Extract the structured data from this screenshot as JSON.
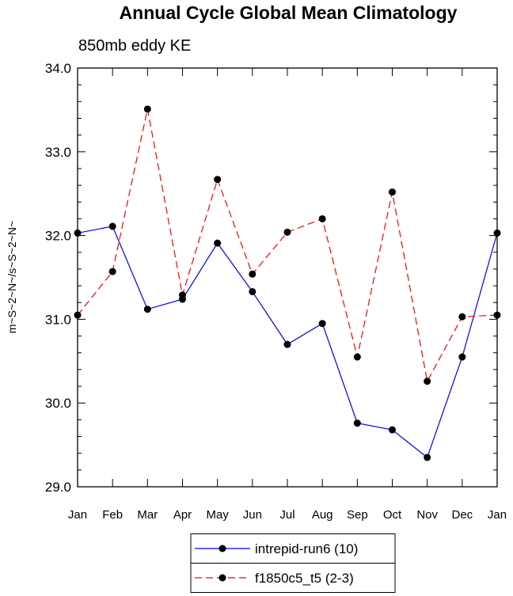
{
  "chart_data": {
    "type": "line",
    "title": "Annual Cycle Global Mean Climatology",
    "subtitle": "850mb eddy KE",
    "xlabel": "",
    "ylabel": "m~S~2~N~/s~S~2~N~",
    "categories": [
      "Jan",
      "Feb",
      "Mar",
      "Apr",
      "May",
      "Jun",
      "Jul",
      "Aug",
      "Sep",
      "Oct",
      "Nov",
      "Dec",
      "Jan"
    ],
    "ylim": [
      29.0,
      34.0
    ],
    "yticks": [
      "29.0",
      "30.0",
      "31.0",
      "32.0",
      "33.0",
      "34.0"
    ],
    "grid": false,
    "legend_placement": "bottom",
    "series": [
      {
        "name": "intrepid-run6 (10)",
        "color": "#0000ff",
        "dash": "solid",
        "values": [
          32.03,
          32.11,
          31.12,
          31.24,
          31.91,
          31.33,
          30.7,
          30.95,
          29.76,
          29.68,
          29.35,
          30.55,
          32.03
        ]
      },
      {
        "name": "f1850c5_t5 (2-3)",
        "color": "#ff0000",
        "dash": "dashed",
        "values": [
          31.05,
          31.57,
          33.51,
          31.29,
          32.67,
          31.54,
          32.04,
          32.2,
          30.55,
          32.52,
          30.26,
          31.03,
          31.05
        ]
      }
    ]
  }
}
